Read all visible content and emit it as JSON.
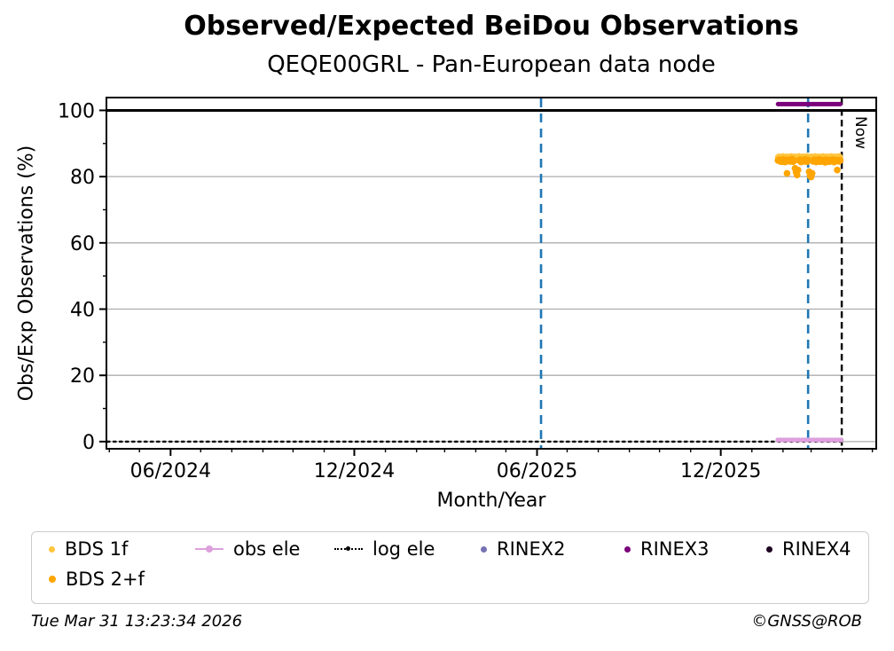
{
  "chart_data": {
    "type": "scatter",
    "title": "Observed/Expected BeiDou Observations",
    "subtitle": "QEQE00GRL - Pan-European data node",
    "x_axis": {
      "label": "Month/Year",
      "unit": "days since 2024-01-01",
      "lim": [
        89,
        854
      ],
      "major_ticks": [
        {
          "day": 152,
          "label": "06/2024"
        },
        {
          "day": 335,
          "label": "12/2024"
        },
        {
          "day": 517,
          "label": "06/2025"
        },
        {
          "day": 700,
          "label": "12/2025"
        }
      ],
      "minor_ticks": [
        91,
        121,
        152,
        182,
        213,
        244,
        274,
        305,
        335,
        366,
        397,
        425,
        456,
        486,
        517,
        547,
        578,
        609,
        639,
        670,
        700,
        731,
        762,
        790,
        821,
        851
      ]
    },
    "y_axis": {
      "label": "Obs/Exp Observations (%)",
      "lim": [
        -1.9,
        103.6
      ],
      "major_ticks": [
        0,
        20,
        40,
        60,
        80,
        100
      ],
      "minor_ticks": [
        10,
        30,
        50,
        70,
        90
      ],
      "gridlines": [
        0,
        20,
        40,
        60,
        80
      ],
      "reference_line": 100
    },
    "vlines": [
      {
        "x_day": 521,
        "color": "#1F77B4",
        "style": "dashed"
      },
      {
        "x_day": 787,
        "color": "#1F77B4",
        "style": "dashed"
      }
    ],
    "now_line": {
      "x_day": 820.5,
      "color": "#000000",
      "label": "Now"
    },
    "series": [
      {
        "name": "BDS 1f",
        "color": "#FFC53D",
        "style": "scatter",
        "marker_r": 3.4,
        "points": [
          [
            757,
            85.9
          ],
          [
            758,
            86.1
          ],
          [
            759,
            85.7
          ],
          [
            760,
            86.0
          ],
          [
            761,
            85.6
          ],
          [
            762,
            86.2
          ],
          [
            763,
            85.8
          ],
          [
            764,
            86.0
          ],
          [
            765,
            85.9
          ],
          [
            766,
            86.1
          ],
          [
            767,
            85.7
          ],
          [
            768,
            86.0
          ],
          [
            769,
            85.6
          ],
          [
            770,
            86.2
          ],
          [
            771,
            85.8
          ],
          [
            772,
            86.0
          ],
          [
            773,
            85.9
          ],
          [
            774,
            86.1
          ],
          [
            775,
            85.7
          ],
          [
            776,
            86.0
          ],
          [
            777,
            85.6
          ],
          [
            778,
            86.2
          ],
          [
            779,
            85.8
          ],
          [
            780,
            86.0
          ],
          [
            781,
            85.9
          ],
          [
            782,
            86.1
          ],
          [
            783,
            85.7
          ],
          [
            784,
            86.0
          ],
          [
            785,
            85.6
          ],
          [
            786,
            86.2
          ],
          [
            787,
            85.8
          ],
          [
            788,
            86.0
          ],
          [
            789,
            85.9
          ],
          [
            790,
            86.1
          ],
          [
            791,
            85.7
          ],
          [
            792,
            86.0
          ],
          [
            793,
            85.6
          ],
          [
            794,
            86.2
          ],
          [
            795,
            85.8
          ],
          [
            796,
            86.0
          ],
          [
            797,
            85.9
          ],
          [
            798,
            86.1
          ],
          [
            799,
            85.7
          ],
          [
            800,
            86.0
          ],
          [
            801,
            85.6
          ],
          [
            802,
            86.2
          ],
          [
            803,
            85.8
          ],
          [
            804,
            86.0
          ],
          [
            805,
            85.9
          ],
          [
            806,
            86.1
          ],
          [
            807,
            85.7
          ],
          [
            808,
            86.0
          ],
          [
            809,
            85.6
          ],
          [
            810,
            86.2
          ],
          [
            811,
            85.8
          ],
          [
            812,
            86.0
          ],
          [
            813,
            85.9
          ],
          [
            814,
            86.1
          ],
          [
            815,
            85.7
          ],
          [
            816,
            86.0
          ],
          [
            817,
            85.6
          ],
          [
            818,
            86.2
          ],
          [
            819,
            85.8
          ]
        ]
      },
      {
        "name": "BDS 2+f",
        "color": "#FFA502",
        "style": "scatter",
        "marker_r": 3.8,
        "points": [
          [
            757,
            84.9
          ],
          [
            758,
            85.1
          ],
          [
            759,
            84.6
          ],
          [
            760,
            85.0
          ],
          [
            761,
            84.5
          ],
          [
            762,
            85.2
          ],
          [
            763,
            84.8
          ],
          [
            764,
            84.4
          ],
          [
            765,
            85.0
          ],
          [
            766,
            81.0
          ],
          [
            767,
            84.7
          ],
          [
            768,
            85.1
          ],
          [
            769,
            84.6
          ],
          [
            770,
            84.9
          ],
          [
            771,
            85.3
          ],
          [
            772,
            84.5
          ],
          [
            773,
            84.8
          ],
          [
            774,
            82.5
          ],
          [
            775,
            81.3
          ],
          [
            776,
            80.5
          ],
          [
            777,
            82.0
          ],
          [
            778,
            84.9
          ],
          [
            779,
            85.1
          ],
          [
            780,
            84.4
          ],
          [
            781,
            84.7
          ],
          [
            782,
            85.0
          ],
          [
            783,
            84.6
          ],
          [
            784,
            85.2
          ],
          [
            785,
            84.8
          ],
          [
            786,
            84.5
          ],
          [
            787,
            85.0
          ],
          [
            788,
            81.5
          ],
          [
            789,
            80.2
          ],
          [
            790,
            79.9
          ],
          [
            791,
            81.0
          ],
          [
            792,
            84.6
          ],
          [
            793,
            85.1
          ],
          [
            794,
            84.8
          ],
          [
            795,
            84.4
          ],
          [
            796,
            85.0
          ],
          [
            797,
            84.7
          ],
          [
            798,
            85.2
          ],
          [
            799,
            84.5
          ],
          [
            800,
            84.9
          ],
          [
            801,
            84.6
          ],
          [
            802,
            85.0
          ],
          [
            803,
            84.8
          ],
          [
            804,
            84.3
          ],
          [
            805,
            85.1
          ],
          [
            806,
            84.7
          ],
          [
            807,
            84.9
          ],
          [
            808,
            84.5
          ],
          [
            809,
            85.0
          ],
          [
            810,
            84.8
          ],
          [
            811,
            84.6
          ],
          [
            812,
            85.1
          ],
          [
            813,
            84.4
          ],
          [
            814,
            84.9
          ],
          [
            815,
            84.7
          ],
          [
            816,
            82.0
          ],
          [
            817,
            85.0
          ],
          [
            818,
            84.6
          ],
          [
            819,
            84.9
          ]
        ]
      },
      {
        "name": "obs ele",
        "color": "#DDA0DD",
        "style": "line-scatter",
        "line_w": 2,
        "marker_r": 2.8,
        "points": [
          [
            757,
            0.5
          ],
          [
            760,
            0.5
          ],
          [
            763,
            0.5
          ],
          [
            766,
            0.5
          ],
          [
            769,
            0.5
          ],
          [
            772,
            0.5
          ],
          [
            775,
            0.5
          ],
          [
            778,
            0.5
          ],
          [
            781,
            0.5
          ],
          [
            784,
            0.5
          ],
          [
            787,
            0.5
          ],
          [
            790,
            0.5
          ],
          [
            793,
            0.5
          ],
          [
            796,
            0.5
          ],
          [
            799,
            0.5
          ],
          [
            802,
            0.5
          ],
          [
            805,
            0.5
          ],
          [
            808,
            0.5
          ],
          [
            811,
            0.5
          ],
          [
            814,
            0.5
          ],
          [
            817,
            0.5
          ],
          [
            820,
            0.5
          ]
        ]
      },
      {
        "name": "log ele",
        "color": "#000000",
        "style": "dotted-line",
        "line_w": 2.4,
        "points": [
          [
            89,
            0
          ],
          [
            820,
            0
          ]
        ]
      },
      {
        "name": "RINEX2",
        "color": "#7672B4",
        "style": "scatter",
        "marker_r": 3.4,
        "points": []
      },
      {
        "name": "RINEX3",
        "color": "#7B017B",
        "style": "thick-line",
        "line_w": 5,
        "points": [
          [
            757,
            101.9
          ],
          [
            819,
            101.9
          ]
        ]
      },
      {
        "name": "RINEX4",
        "color": "#1E0222",
        "style": "scatter",
        "marker_r": 3.4,
        "points": []
      }
    ]
  },
  "legend": {
    "items": [
      {
        "label": "BDS 1f",
        "color": "#FFC53D",
        "marker": "dot"
      },
      {
        "label": "obs ele",
        "color": "#DDA0DD",
        "marker": "line-dot"
      },
      {
        "label": "log ele",
        "color": "#000000",
        "marker": "dotted-line-dot"
      },
      {
        "label": "RINEX2",
        "color": "#7672B4",
        "marker": "dot"
      },
      {
        "label": "RINEX3",
        "color": "#7B017B",
        "marker": "dot"
      },
      {
        "label": "RINEX4",
        "color": "#1E0222",
        "marker": "dot"
      },
      {
        "label": "BDS 2+f",
        "color": "#FFA502",
        "marker": "dot"
      }
    ]
  },
  "footer": {
    "timestamp": "Tue Mar 31 13:23:34 2026",
    "credit": "©GNSS@ROB"
  }
}
